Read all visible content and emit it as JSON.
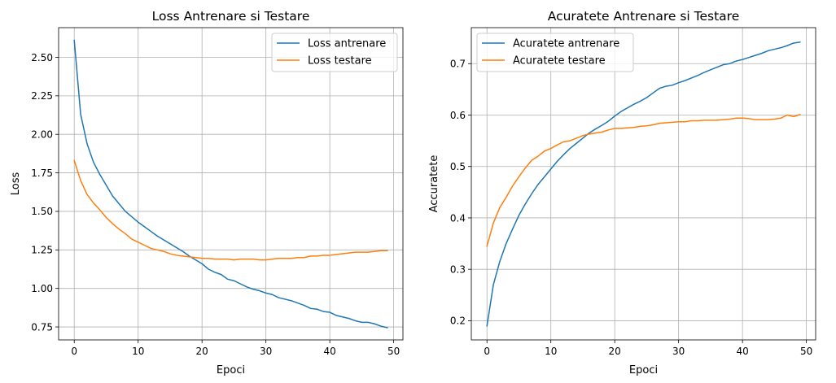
{
  "chart_data": [
    {
      "type": "line",
      "title": "Loss Antrenare si Testare",
      "xlabel": "Epoci",
      "ylabel": "Loss",
      "xlim": [
        -2.45,
        51.45
      ],
      "ylim": [
        0.6658,
        2.6925
      ],
      "xticks": [
        0,
        10,
        20,
        30,
        40,
        50
      ],
      "yticks": [
        0.75,
        1.0,
        1.25,
        1.5,
        1.75,
        2.0,
        2.25,
        2.5
      ],
      "ytick_labels": [
        "0.75",
        "1.00",
        "1.25",
        "1.50",
        "1.75",
        "2.00",
        "2.25",
        "2.50"
      ],
      "grid": true,
      "legend_position": "top-right",
      "series": [
        {
          "name": "Loss antrenare",
          "color": "#1f77b4",
          "values": [
            2.61,
            2.13,
            1.94,
            1.82,
            1.74,
            1.67,
            1.6,
            1.55,
            1.5,
            1.465,
            1.43,
            1.4,
            1.37,
            1.34,
            1.315,
            1.29,
            1.265,
            1.24,
            1.21,
            1.185,
            1.16,
            1.125,
            1.105,
            1.09,
            1.06,
            1.05,
            1.03,
            1.01,
            0.995,
            0.985,
            0.97,
            0.96,
            0.94,
            0.93,
            0.92,
            0.905,
            0.89,
            0.87,
            0.865,
            0.85,
            0.845,
            0.825,
            0.815,
            0.805,
            0.79,
            0.78,
            0.78,
            0.77,
            0.755,
            0.745
          ]
        },
        {
          "name": "Loss testare",
          "color": "#ff7f0e",
          "values": [
            1.83,
            1.7,
            1.61,
            1.555,
            1.51,
            1.46,
            1.42,
            1.385,
            1.355,
            1.32,
            1.3,
            1.28,
            1.26,
            1.25,
            1.24,
            1.225,
            1.215,
            1.21,
            1.205,
            1.2,
            1.195,
            1.195,
            1.19,
            1.19,
            1.19,
            1.185,
            1.19,
            1.19,
            1.19,
            1.185,
            1.185,
            1.19,
            1.195,
            1.195,
            1.195,
            1.2,
            1.2,
            1.21,
            1.21,
            1.215,
            1.215,
            1.22,
            1.225,
            1.23,
            1.235,
            1.235,
            1.235,
            1.24,
            1.245,
            1.245
          ]
        }
      ]
    },
    {
      "type": "line",
      "title": "Acuratete Antrenare si Testare",
      "xlabel": "Epoci",
      "ylabel": "Accuratete",
      "xlim": [
        -2.45,
        51.45
      ],
      "ylim": [
        0.1627,
        0.77
      ],
      "xticks": [
        0,
        10,
        20,
        30,
        40,
        50
      ],
      "yticks": [
        0.2,
        0.3,
        0.4,
        0.5,
        0.6,
        0.7
      ],
      "ytick_labels": [
        "0.2",
        "0.3",
        "0.4",
        "0.5",
        "0.6",
        "0.7"
      ],
      "grid": true,
      "legend_position": "top-left",
      "series": [
        {
          "name": "Acuratete antrenare",
          "color": "#1f77b4",
          "values": [
            0.19,
            0.27,
            0.315,
            0.35,
            0.378,
            0.405,
            0.427,
            0.447,
            0.465,
            0.48,
            0.495,
            0.51,
            0.523,
            0.535,
            0.545,
            0.555,
            0.565,
            0.573,
            0.58,
            0.588,
            0.598,
            0.607,
            0.614,
            0.621,
            0.627,
            0.634,
            0.643,
            0.652,
            0.656,
            0.658,
            0.663,
            0.667,
            0.672,
            0.677,
            0.683,
            0.688,
            0.693,
            0.698,
            0.7,
            0.705,
            0.708,
            0.712,
            0.716,
            0.72,
            0.725,
            0.728,
            0.731,
            0.735,
            0.74,
            0.742
          ]
        },
        {
          "name": "Acuratete testare",
          "color": "#ff7f0e",
          "values": [
            0.345,
            0.39,
            0.42,
            0.44,
            0.462,
            0.48,
            0.497,
            0.512,
            0.52,
            0.53,
            0.535,
            0.542,
            0.548,
            0.55,
            0.555,
            0.56,
            0.563,
            0.565,
            0.567,
            0.571,
            0.574,
            0.574,
            0.575,
            0.576,
            0.578,
            0.579,
            0.581,
            0.584,
            0.585,
            0.586,
            0.587,
            0.587,
            0.589,
            0.589,
            0.59,
            0.59,
            0.59,
            0.591,
            0.592,
            0.594,
            0.594,
            0.593,
            0.591,
            0.591,
            0.591,
            0.592,
            0.594,
            0.6,
            0.597,
            0.601
          ]
        }
      ]
    }
  ]
}
